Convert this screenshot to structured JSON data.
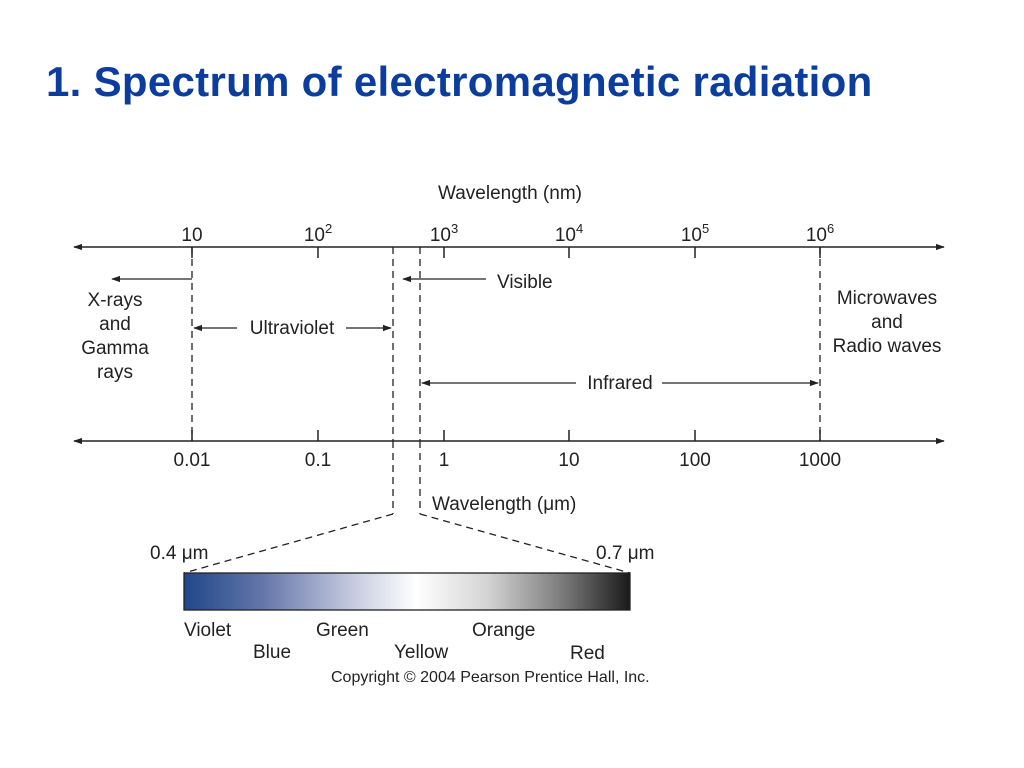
{
  "title": "1. Spectrum of electromagnetic radiation",
  "top_axis": {
    "label": "Wavelength (nm)",
    "ticks": [
      {
        "base": "10",
        "exp": ""
      },
      {
        "base": "10",
        "exp": "2"
      },
      {
        "base": "10",
        "exp": "3"
      },
      {
        "base": "10",
        "exp": "4"
      },
      {
        "base": "10",
        "exp": "5"
      },
      {
        "base": "10",
        "exp": "6"
      }
    ]
  },
  "bottom_axis": {
    "label": "Wavelength (μm)",
    "ticks": [
      "0.01",
      "0.1",
      "1",
      "10",
      "100",
      "1000"
    ]
  },
  "regions": {
    "xray_line1": "X-rays",
    "xray_line2": "and",
    "xray_line3": "Gamma",
    "xray_line4": "rays",
    "ultraviolet": "Ultraviolet",
    "visible": "Visible",
    "infrared": "Infrared",
    "micro_line1": "Microwaves",
    "micro_line2": "and",
    "micro_line3": "Radio waves"
  },
  "visible_band": {
    "start": "0.4 μm",
    "end": "0.7 μm",
    "colors": [
      "Violet",
      "Blue",
      "Green",
      "Yellow",
      "Orange",
      "Red"
    ]
  },
  "copyright": "Copyright © 2004 Pearson Prentice Hall, Inc."
}
